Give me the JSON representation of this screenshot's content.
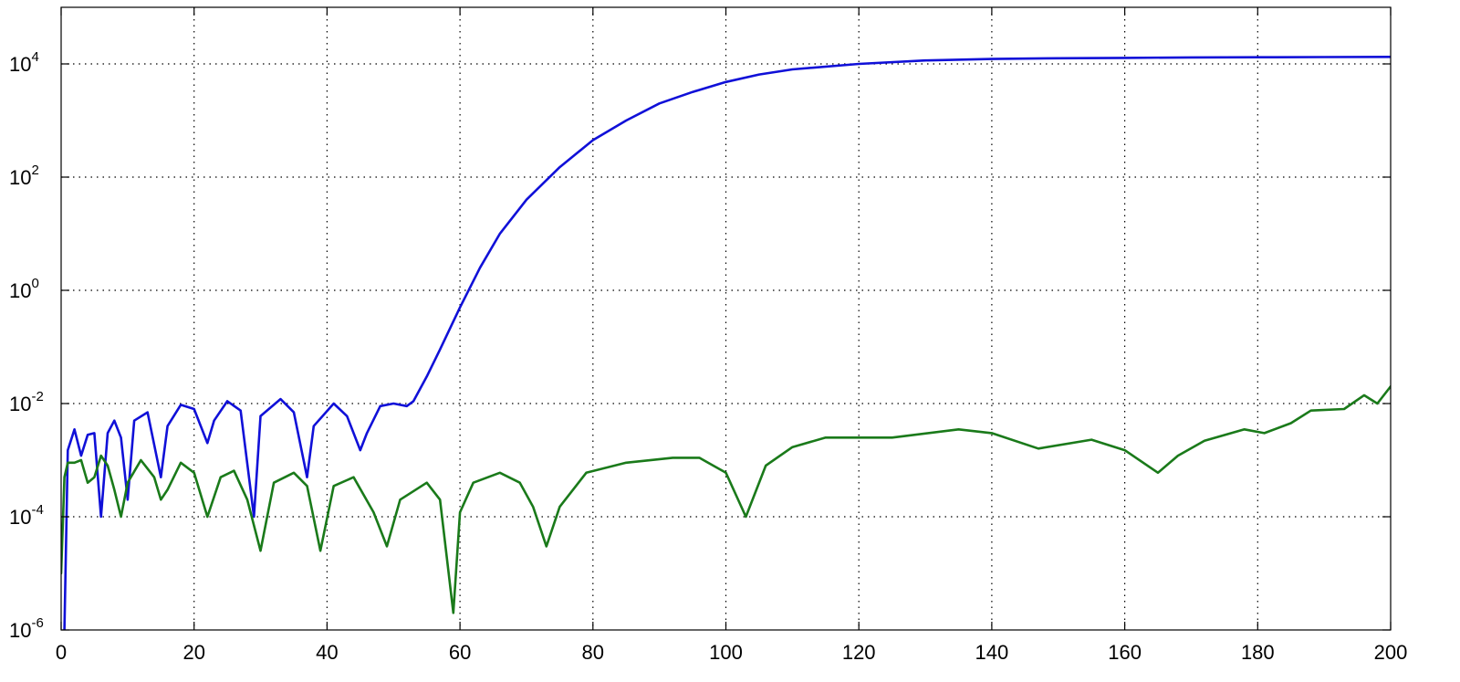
{
  "chart_data": {
    "type": "line",
    "title": "",
    "xlabel": "",
    "ylabel": "",
    "xlim": [
      0,
      200
    ],
    "ylim_log10": [
      -6,
      5
    ],
    "yscale": "log",
    "grid": true,
    "legend": "none",
    "x_ticks": [
      0,
      20,
      40,
      60,
      80,
      100,
      120,
      140,
      160,
      180,
      200
    ],
    "x_tick_labels": [
      "0",
      "20",
      "40",
      "60",
      "80",
      "100",
      "120",
      "140",
      "160",
      "180",
      "200"
    ],
    "y_ticks_log10": [
      -6,
      -4,
      -2,
      0,
      2,
      4
    ],
    "y_tick_labels": [
      {
        "base": "10",
        "exp": "-6"
      },
      {
        "base": "10",
        "exp": "-4"
      },
      {
        "base": "10",
        "exp": "-2"
      },
      {
        "base": "10",
        "exp": "0"
      },
      {
        "base": "10",
        "exp": "2"
      },
      {
        "base": "10",
        "exp": "4"
      }
    ],
    "series": [
      {
        "color": "#1010d8",
        "x": [
          0.5,
          1,
          2,
          3,
          4,
          5,
          6,
          7,
          8,
          9,
          10,
          11,
          13,
          15,
          16,
          18,
          20,
          22,
          23,
          25,
          27,
          29,
          30,
          33,
          35,
          37,
          38,
          41,
          43,
          45,
          46,
          48,
          50,
          52,
          53,
          55,
          57,
          60,
          63,
          66,
          70,
          75,
          80,
          85,
          90,
          95,
          100,
          105,
          110,
          120,
          130,
          140,
          150,
          160,
          170,
          180,
          190,
          200
        ],
        "y": [
          1e-06,
          0.0015,
          0.0035,
          0.0012,
          0.0028,
          0.003,
          0.0001,
          0.003,
          0.005,
          0.0025,
          0.0002,
          0.005,
          0.007,
          0.0005,
          0.004,
          0.0095,
          0.008,
          0.002,
          0.005,
          0.011,
          0.0075,
          0.0001,
          0.006,
          0.012,
          0.007,
          0.0005,
          0.004,
          0.01,
          0.006,
          0.0015,
          0.003,
          0.009,
          0.01,
          0.009,
          0.011,
          0.03,
          0.09,
          0.5,
          2.5,
          10,
          40,
          150,
          450,
          1000,
          2000,
          3200,
          4800,
          6500,
          8000,
          10000,
          11500,
          12200,
          12600,
          12800,
          13000,
          13100,
          13200,
          13300
        ]
      },
      {
        "color": "#1a7a1a",
        "x": [
          0,
          0.5,
          1,
          2,
          3,
          4,
          5,
          6,
          7,
          8,
          9,
          10,
          12,
          14,
          15,
          16,
          18,
          20,
          22,
          24,
          26,
          28,
          30,
          32,
          35,
          37,
          39,
          41,
          44,
          47,
          49,
          51,
          55,
          57,
          59,
          60,
          62,
          66,
          69,
          71,
          73,
          75,
          79,
          85,
          92,
          96,
          100,
          103,
          106,
          110,
          115,
          120,
          125,
          135,
          140,
          147,
          155,
          160,
          165,
          168,
          172,
          178,
          181,
          185,
          188,
          193,
          196,
          198,
          200
        ],
        "y": [
          1e-05,
          0.0005,
          0.0009,
          0.0009,
          0.001,
          0.0004,
          0.0005,
          0.0012,
          0.0008,
          0.0003,
          0.0001,
          0.0004,
          0.001,
          0.0005,
          0.0002,
          0.0003,
          0.0009,
          0.0006,
          0.0001,
          0.0005,
          0.00065,
          0.0002,
          2.5e-05,
          0.0004,
          0.0006,
          0.00035,
          2.5e-05,
          0.00035,
          0.0005,
          0.00012,
          3e-05,
          0.0002,
          0.0004,
          0.0002,
          2e-06,
          0.00012,
          0.0004,
          0.0006,
          0.0004,
          0.00015,
          3e-05,
          0.00015,
          0.0006,
          0.0009,
          0.0011,
          0.0011,
          0.0006,
          0.0001,
          0.0008,
          0.0017,
          0.0025,
          0.0025,
          0.0025,
          0.0035,
          0.003,
          0.0016,
          0.0023,
          0.0015,
          0.0006,
          0.0012,
          0.0022,
          0.0035,
          0.003,
          0.0045,
          0.0075,
          0.008,
          0.014,
          0.01,
          0.02
        ]
      }
    ]
  }
}
